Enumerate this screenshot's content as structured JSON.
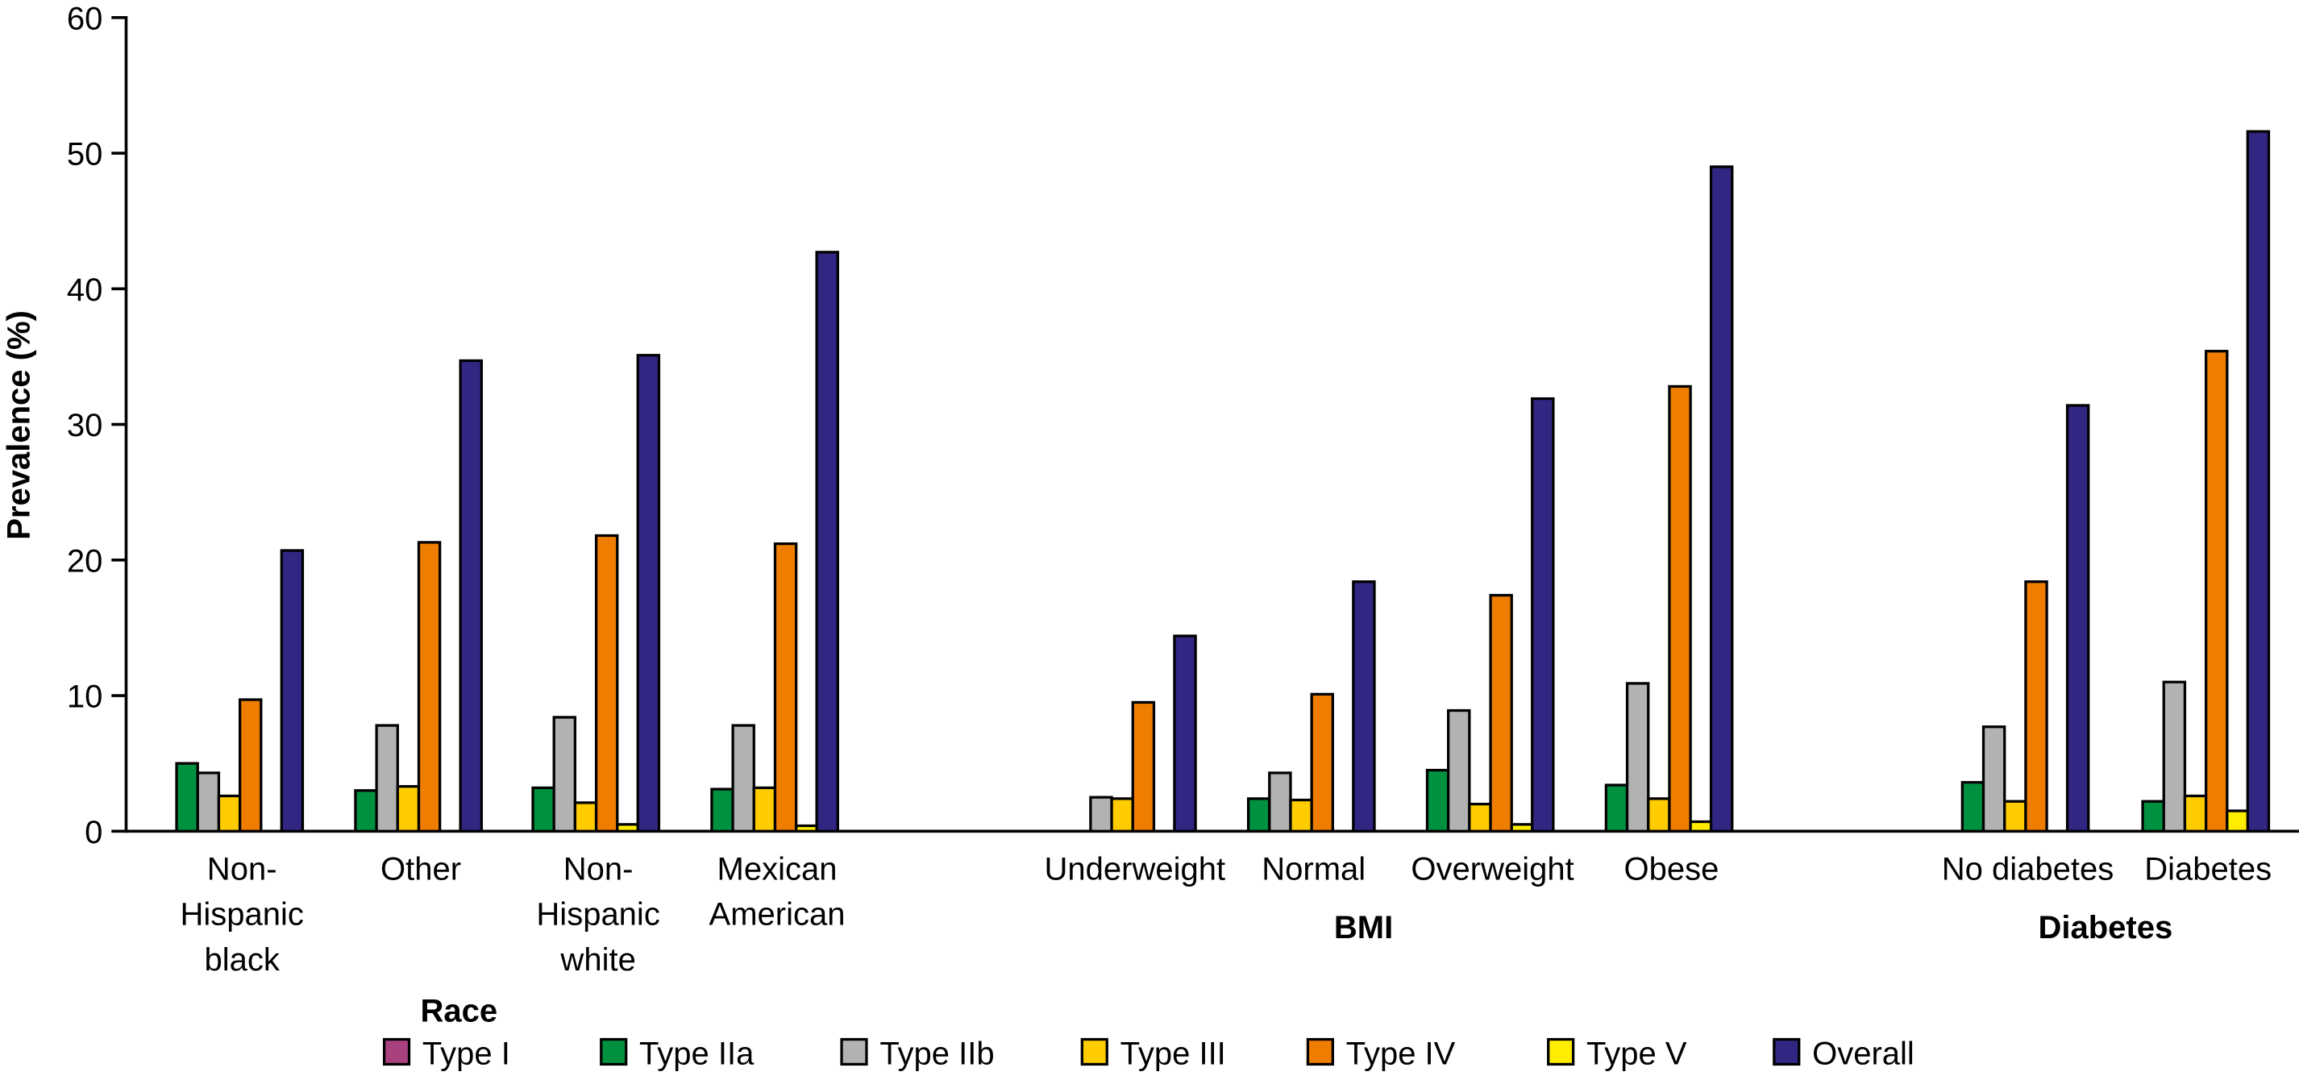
{
  "chart_data": {
    "type": "bar",
    "title": "",
    "xlabel": "",
    "ylabel": "Prevalence (%)",
    "ylim": [
      0,
      60
    ],
    "yticks": [
      "0",
      "10",
      "20",
      "30",
      "40",
      "50",
      "60"
    ],
    "grid": false,
    "legend_placement": "bottom",
    "groups": [
      {
        "label": "Race",
        "categories": [
          "Non-Hispanic black",
          "Other",
          "Non-Hispanic white",
          "Mexican American"
        ]
      },
      {
        "label": "BMI",
        "categories": [
          "Underweight",
          "Normal",
          "Overweight",
          "Obese"
        ]
      },
      {
        "label": "Diabetes",
        "categories": [
          "No diabetes",
          "Diabetes"
        ]
      }
    ],
    "category_label_lines": [
      [
        "Non-",
        "Hispanic",
        "black"
      ],
      [
        "Other"
      ],
      [
        "Non-",
        "Hispanic",
        "white"
      ],
      [
        "Mexican",
        "American"
      ],
      [
        "Underweight"
      ],
      [
        "Normal"
      ],
      [
        "Overweight"
      ],
      [
        "Obese"
      ],
      [
        "No diabetes"
      ],
      [
        "Diabetes"
      ]
    ],
    "categories": [
      "Non-Hispanic black",
      "Other",
      "Non-Hispanic white",
      "Mexican American",
      "Underweight",
      "Normal",
      "Overweight",
      "Obese",
      "No diabetes",
      "Diabetes"
    ],
    "series": [
      {
        "name": "Type I",
        "color": "#a9417f",
        "values": [
          0,
          0,
          0,
          0,
          0,
          0,
          0,
          0,
          0,
          0
        ]
      },
      {
        "name": "Type IIa",
        "color": "#009140",
        "values": [
          5.0,
          3.0,
          3.2,
          3.1,
          0,
          2.4,
          4.5,
          3.4,
          3.6,
          2.2
        ]
      },
      {
        "name": "Type IIb",
        "color": "#b2b2b2",
        "values": [
          4.3,
          7.8,
          8.4,
          7.8,
          2.5,
          4.3,
          8.9,
          10.9,
          7.7,
          11.0
        ]
      },
      {
        "name": "Type III",
        "color": "#ffcc00",
        "values": [
          2.6,
          3.3,
          2.1,
          3.2,
          2.4,
          2.3,
          2.0,
          2.4,
          2.2,
          2.6
        ]
      },
      {
        "name": "Type IV",
        "color": "#ef7d00",
        "values": [
          9.7,
          21.3,
          21.8,
          21.2,
          9.5,
          10.1,
          17.4,
          32.8,
          18.4,
          35.4
        ]
      },
      {
        "name": "Type V",
        "color": "#ffed00",
        "values": [
          0,
          0,
          0.5,
          0.4,
          0,
          0,
          0.5,
          0.7,
          0,
          1.5
        ]
      },
      {
        "name": "Overall",
        "color": "#312783",
        "values": [
          20.7,
          34.7,
          35.1,
          42.7,
          14.4,
          18.4,
          31.9,
          49.0,
          31.4,
          51.6
        ]
      }
    ]
  }
}
